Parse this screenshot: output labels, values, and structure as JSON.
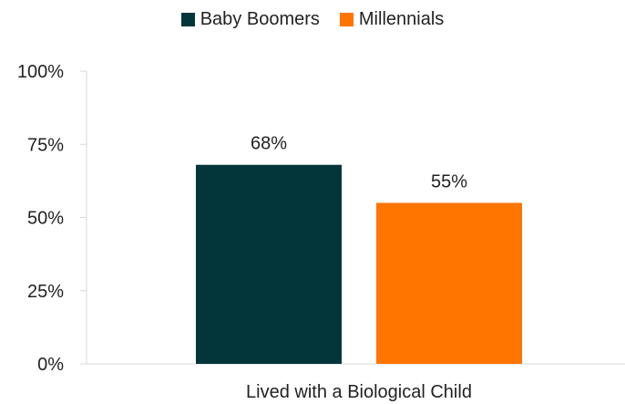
{
  "chart_data": {
    "type": "bar",
    "categories": [
      "Lived with a Biological Child"
    ],
    "series": [
      {
        "name": "Baby Boomers",
        "values": [
          68
        ],
        "color": "#02363a"
      },
      {
        "name": "Millennials",
        "values": [
          55
        ],
        "color": "#ff7500"
      }
    ],
    "data_labels": [
      "68%",
      "55%"
    ],
    "ylim": [
      0,
      100
    ],
    "yticks": [
      {
        "value": 0,
        "label": "0%"
      },
      {
        "value": 25,
        "label": "25%"
      },
      {
        "value": 50,
        "label": "50%"
      },
      {
        "value": 75,
        "label": "75%"
      },
      {
        "value": 100,
        "label": "100%"
      }
    ],
    "legend_position": "top-center",
    "grid": false
  }
}
